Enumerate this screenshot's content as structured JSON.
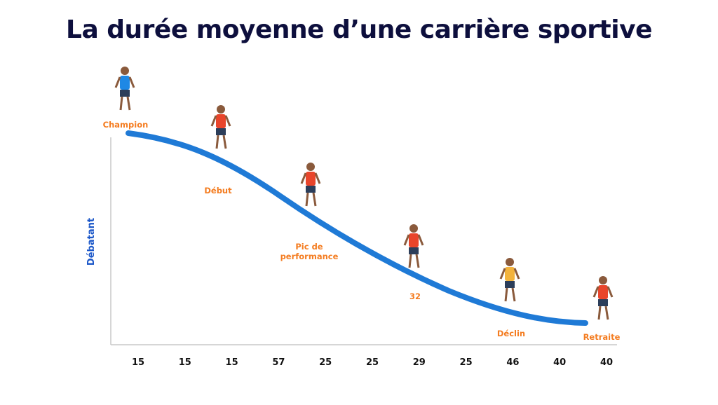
{
  "chart_data": {
    "type": "line",
    "title": "La durée moyenne d’une carrière sportive",
    "xlabel": "",
    "ylabel": "Débatant",
    "categories": [
      "15",
      "15",
      "15",
      "57",
      "25",
      "25",
      "29",
      "25",
      "46",
      "40",
      "40"
    ],
    "annotations": [
      {
        "label": "Champion"
      },
      {
        "label": "Début"
      },
      {
        "label": "Pic de",
        "label2": "performance"
      },
      {
        "label": "32"
      },
      {
        "label": "Déclin"
      },
      {
        "label": "Retraite"
      }
    ],
    "trend": "decreasing S-curve",
    "grid": false,
    "colors": {
      "line": "#1f7ad6",
      "annotation": "#f47c20",
      "title": "#0d0f3d",
      "ylabel": "#1a56c8",
      "axis": "#c8c8c8"
    }
  }
}
